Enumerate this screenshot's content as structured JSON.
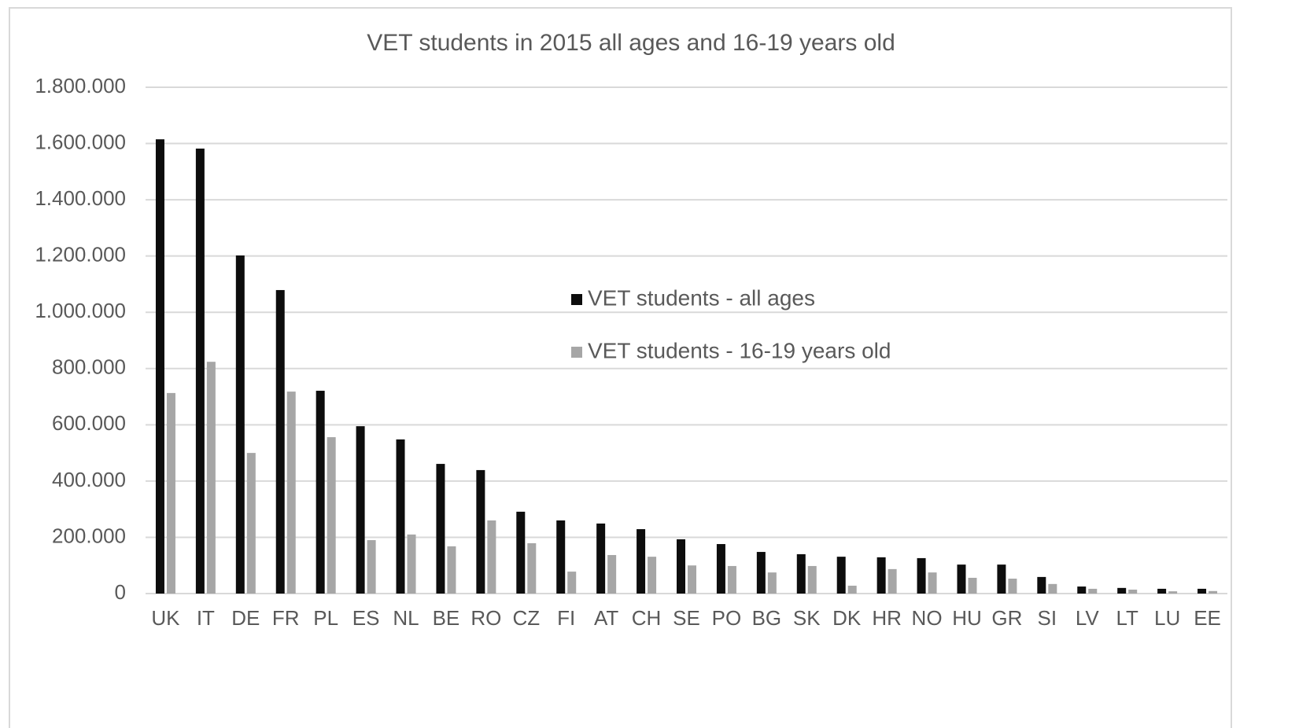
{
  "chart_data": {
    "type": "bar",
    "title": "VET students in 2015 all ages and 16-19 years old",
    "categories": [
      "UK",
      "IT",
      "DE",
      "FR",
      "PL",
      "ES",
      "NL",
      "BE",
      "RO",
      "CZ",
      "FI",
      "AT",
      "CH",
      "SE",
      "PO",
      "BG",
      "SK",
      "DK",
      "HR",
      "NO",
      "HU",
      "GR",
      "SI",
      "LV",
      "LT",
      "LU",
      "EE"
    ],
    "series": [
      {
        "name": "VET students - all ages",
        "color": "#0d0d0d",
        "values": [
          1615000,
          1582000,
          1202000,
          1079000,
          721000,
          595000,
          548000,
          461000,
          439000,
          291000,
          260000,
          249000,
          229000,
          193000,
          176000,
          148000,
          140000,
          131000,
          129000,
          126000,
          103000,
          103000,
          59000,
          25000,
          20000,
          17000,
          17000
        ]
      },
      {
        "name": "VET students - 16-19 years old",
        "color": "#a6a6a6",
        "values": [
          713000,
          824000,
          500000,
          718000,
          556000,
          190000,
          210000,
          168000,
          260000,
          179000,
          78000,
          137000,
          131000,
          100000,
          98000,
          75000,
          98000,
          28000,
          87000,
          75000,
          56000,
          53000,
          34000,
          17000,
          14000,
          8000,
          9000
        ]
      }
    ],
    "ylim": [
      0,
      1800000
    ],
    "yticks": [
      0,
      {
        "value": 200000,
        "label": "200.000"
      },
      {
        "value": 400000,
        "label": "400.000"
      },
      {
        "value": 600000,
        "label": "600.000"
      },
      {
        "value": 800000,
        "label": "800.000"
      },
      {
        "value": 1000000,
        "label": "1.000.000"
      },
      {
        "value": 1200000,
        "label": "1.200.000"
      },
      {
        "value": 1400000,
        "label": "1.400.000"
      },
      {
        "value": 1600000,
        "label": "1.600.000"
      },
      {
        "value": 1800000,
        "label": "1.800.000"
      }
    ],
    "grid": true
  }
}
